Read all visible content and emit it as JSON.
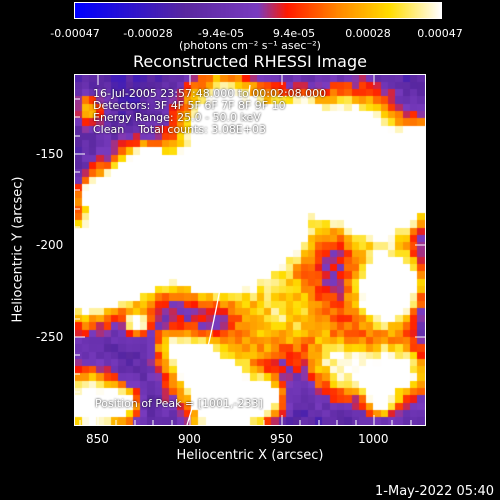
{
  "colorbar": {
    "tick_labels": [
      "-0.00047",
      "-0.00028",
      "-9.4e-05",
      "9.4e-05",
      "0.00028",
      "0.00047"
    ],
    "units": "(photons cm⁻² s⁻¹ asec⁻²)"
  },
  "title": "Reconstructed RHESSI Image",
  "info": {
    "line1": "16-Jul-2005 23:57:48.000 to 00:02:08.000",
    "line2": "Detectors: 3F 4F 5F 6F 7F 8F 9F 10",
    "line3": "Energy Range: 25.0 - 50.0 keV",
    "line4": "Clean    Total counts: 3.08E+03"
  },
  "peak_label": "Position of Peak = [1001,-233]",
  "x_axis": {
    "label": "Heliocentric X (arcsec)",
    "ticks": [
      "850",
      "900",
      "950",
      "1000"
    ],
    "range": [
      837,
      1027
    ]
  },
  "y_axis": {
    "label": "Heliocentric Y (arcsec)",
    "ticks": [
      "-150",
      "-200",
      "-250"
    ],
    "range": [
      -296,
      -106
    ]
  },
  "datestamp": "1-May-2022 05:40",
  "colors": {
    "background": "#000000",
    "colormap": [
      "#0000ff",
      "#5a28a0",
      "#7a3cc0",
      "#ff1a00",
      "#ff8800",
      "#ffdd00",
      "#ffffff"
    ]
  }
}
